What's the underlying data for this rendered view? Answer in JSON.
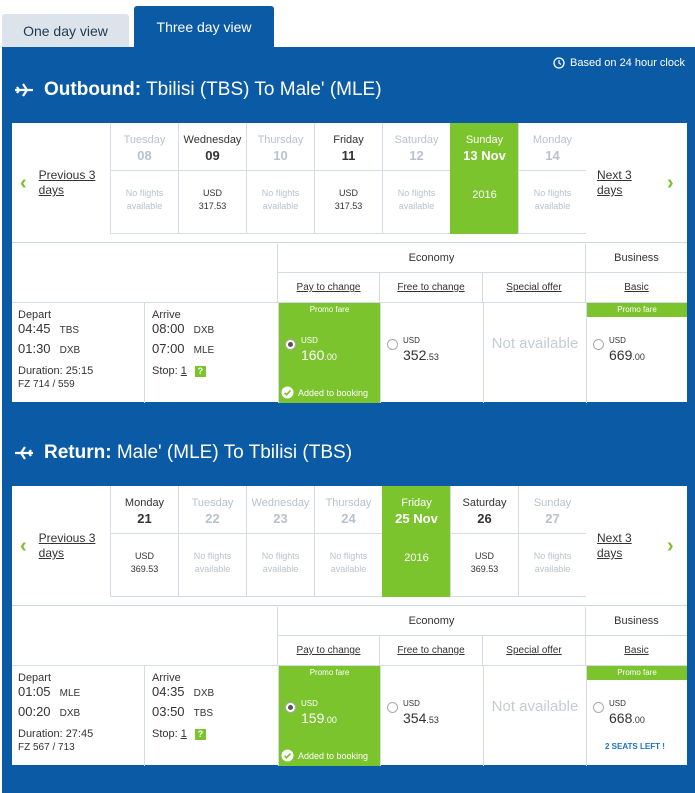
{
  "tabs": [
    {
      "label": "One day view"
    },
    {
      "label": "Three day view"
    }
  ],
  "clock_note": "Based on 24 hour clock",
  "labels": {
    "previous": "Previous 3 days",
    "next": "Next 3 days",
    "economy": "Economy",
    "business": "Business",
    "pay_to_change": "Pay to change",
    "free_to_change": "Free to change",
    "special_offer": "Special offer",
    "basic": "Basic",
    "promo": "Promo fare",
    "added": "Added to booking",
    "not_available": "Not available",
    "depart": "Depart",
    "arrive": "Arrive",
    "stop": "Stop:",
    "no_flights": "No flights available",
    "q": "?"
  },
  "outbound": {
    "kind": "Outbound:",
    "route": "Tbilisi (TBS) To Male' (MLE)",
    "days": [
      {
        "name": "Tuesday",
        "date": "08",
        "available": false
      },
      {
        "name": "Wednesday",
        "date": "09",
        "available": true,
        "cur": "USD",
        "amount": "317.53"
      },
      {
        "name": "Thursday",
        "date": "10",
        "available": false
      },
      {
        "name": "Friday",
        "date": "11",
        "available": true,
        "cur": "USD",
        "amount": "317.53"
      },
      {
        "name": "Saturday",
        "date": "12",
        "available": false
      },
      {
        "name": "Sunday",
        "date": "13 Nov",
        "selected": true,
        "year": "2016"
      },
      {
        "name": "Monday",
        "date": "14",
        "available": false
      }
    ],
    "flight": {
      "dep1_time": "04:45",
      "dep1_code": "TBS",
      "dep2_time": "01:30",
      "dep2_code": "DXB",
      "arr1_time": "08:00",
      "arr1_code": "DXB",
      "arr2_time": "07:00",
      "arr2_code": "MLE",
      "duration": "Duration: 25:15",
      "flight_no": "FZ 714 / 559",
      "stops": "1"
    },
    "fares": {
      "pay": {
        "cur": "USD",
        "int": "160",
        "dec": ".00"
      },
      "free": {
        "cur": "USD",
        "int": "352",
        "dec": ".53"
      },
      "business": {
        "cur": "USD",
        "int": "669",
        "dec": ".00"
      }
    }
  },
  "return": {
    "kind": "Return:",
    "route": "Male' (MLE) To Tbilisi (TBS)",
    "days": [
      {
        "name": "Monday",
        "date": "21",
        "available": true,
        "cur": "USD",
        "amount": "369.53"
      },
      {
        "name": "Tuesday",
        "date": "22",
        "available": false
      },
      {
        "name": "Wednesday",
        "date": "23",
        "available": false
      },
      {
        "name": "Thursday",
        "date": "24",
        "available": false
      },
      {
        "name": "Friday",
        "date": "25 Nov",
        "selected": true,
        "year": "2016"
      },
      {
        "name": "Saturday",
        "date": "26",
        "available": true,
        "cur": "USD",
        "amount": "369.53"
      },
      {
        "name": "Sunday",
        "date": "27",
        "available": false
      }
    ],
    "flight": {
      "dep1_time": "01:05",
      "dep1_code": "MLE",
      "dep2_time": "00:20",
      "dep2_code": "DXB",
      "arr1_time": "04:35",
      "arr1_code": "DXB",
      "arr2_time": "03:50",
      "arr2_code": "TBS",
      "duration": "Duration: 27:45",
      "flight_no": "FZ 567 / 713",
      "stops": "1"
    },
    "fares": {
      "pay": {
        "cur": "USD",
        "int": "159",
        "dec": ".00"
      },
      "free": {
        "cur": "USD",
        "int": "354",
        "dec": ".53"
      },
      "business": {
        "cur": "USD",
        "int": "668",
        "dec": ".00"
      }
    },
    "seats_left": "2 SEATS LEFT !"
  },
  "colors": {
    "brand": "#0b5aa6",
    "accent": "#7bc42e"
  }
}
